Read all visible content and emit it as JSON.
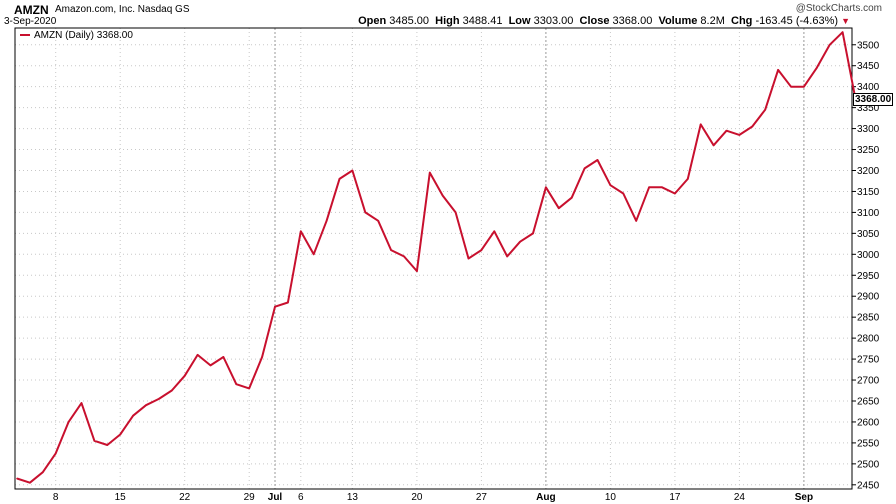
{
  "header": {
    "ticker": "AMZN",
    "company": "Amazon.com, Inc.  Nasdaq GS",
    "date": "3-Sep-2020",
    "watermark": "@StockCharts.com",
    "open_label": "Open",
    "open": "3485.00",
    "high_label": "High",
    "high": "3488.41",
    "low_label": "Low",
    "low": "3303.00",
    "close_label": "Close",
    "close": "3368.00",
    "volume_label": "Volume",
    "volume": "8.2M",
    "chg_label": "Chg",
    "chg": "-163.45 (-4.63%)",
    "chg_arrow": "▼"
  },
  "legend": {
    "text": "AMZN (Daily) 3368.00"
  },
  "last_tag": "3368.00",
  "colors": {
    "line": "#c8102e",
    "grid": "#c8c8c8",
    "axis": "#000000"
  },
  "chart_data": {
    "type": "line",
    "title": "AMZN (Daily) 3368.00",
    "series": [
      {
        "name": "AMZN (Daily)",
        "values": [
          2465,
          2455,
          2480,
          2525,
          2600,
          2645,
          2555,
          2545,
          2570,
          2615,
          2640,
          2655,
          2675,
          2710,
          2760,
          2735,
          2755,
          2690,
          2680,
          2755,
          2875,
          2885,
          3055,
          3000,
          3080,
          3180,
          3200,
          3100,
          3080,
          3010,
          2995,
          2960,
          3195,
          3140,
          3100,
          2990,
          3010,
          3055,
          2995,
          3030,
          3050,
          3160,
          3110,
          3135,
          3205,
          3225,
          3165,
          3145,
          3080,
          3160,
          3160,
          3145,
          3180,
          3310,
          3260,
          3295,
          3285,
          3305,
          3345,
          3440,
          3400,
          3400,
          3445,
          3500,
          3530,
          3370
        ]
      }
    ],
    "xticks": [
      {
        "label": "8",
        "index": 3
      },
      {
        "label": "15",
        "index": 8
      },
      {
        "label": "22",
        "index": 13
      },
      {
        "label": "29",
        "index": 18
      },
      {
        "label": "Jul",
        "index": 20
      },
      {
        "label": "6",
        "index": 22
      },
      {
        "label": "13",
        "index": 26
      },
      {
        "label": "20",
        "index": 31
      },
      {
        "label": "27",
        "index": 36
      },
      {
        "label": "Aug",
        "index": 41
      },
      {
        "label": "10",
        "index": 46
      },
      {
        "label": "17",
        "index": 51
      },
      {
        "label": "24",
        "index": 56
      },
      {
        "label": "Sep",
        "index": 61
      }
    ],
    "month_ticks": [
      "Jul",
      "Aug",
      "Sep"
    ],
    "yticks": [
      2450,
      2500,
      2550,
      2600,
      2650,
      2700,
      2750,
      2800,
      2850,
      2900,
      2950,
      3000,
      3050,
      3100,
      3150,
      3200,
      3250,
      3300,
      3350,
      3400,
      3450,
      3500
    ],
    "ylim": [
      2440,
      3540
    ],
    "grid": true,
    "legend_position": "top-left",
    "last_value": 3368
  }
}
